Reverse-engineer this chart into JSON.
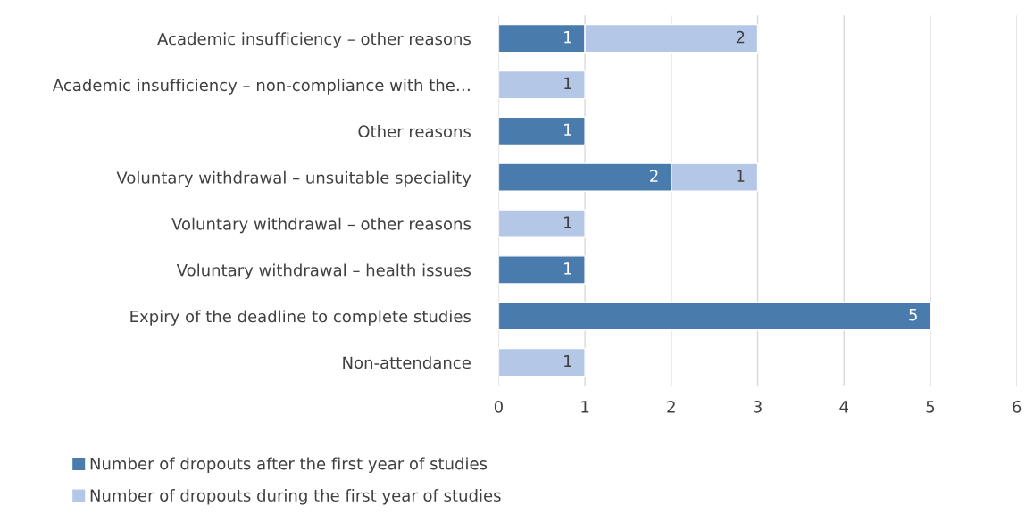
{
  "chart_data": {
    "type": "bar",
    "orientation": "horizontal",
    "stacked": true,
    "categories": [
      "Academic insufficiency – other reasons",
      "Academic insufficiency – non-compliance with the…",
      "Other reasons",
      "Voluntary withdrawal – unsuitable speciality",
      "Voluntary withdrawal – other reasons",
      "Voluntary withdrawal – health issues",
      "Expiry of the deadline to complete studies",
      "Non-attendance"
    ],
    "series": [
      {
        "name": "Number of dropouts after the first year of studies",
        "color": "#4a7bad",
        "values": [
          1,
          null,
          1,
          2,
          null,
          1,
          5,
          null
        ]
      },
      {
        "name": "Number of dropouts during the first year of studies",
        "color": "#b4c7e7",
        "values": [
          2,
          1,
          null,
          1,
          1,
          null,
          null,
          1
        ]
      }
    ],
    "xlim": [
      0,
      6
    ],
    "xticks": [
      0,
      1,
      2,
      3,
      4,
      5,
      6
    ],
    "grid": "x",
    "legend": "bottom",
    "data_labels": true
  }
}
